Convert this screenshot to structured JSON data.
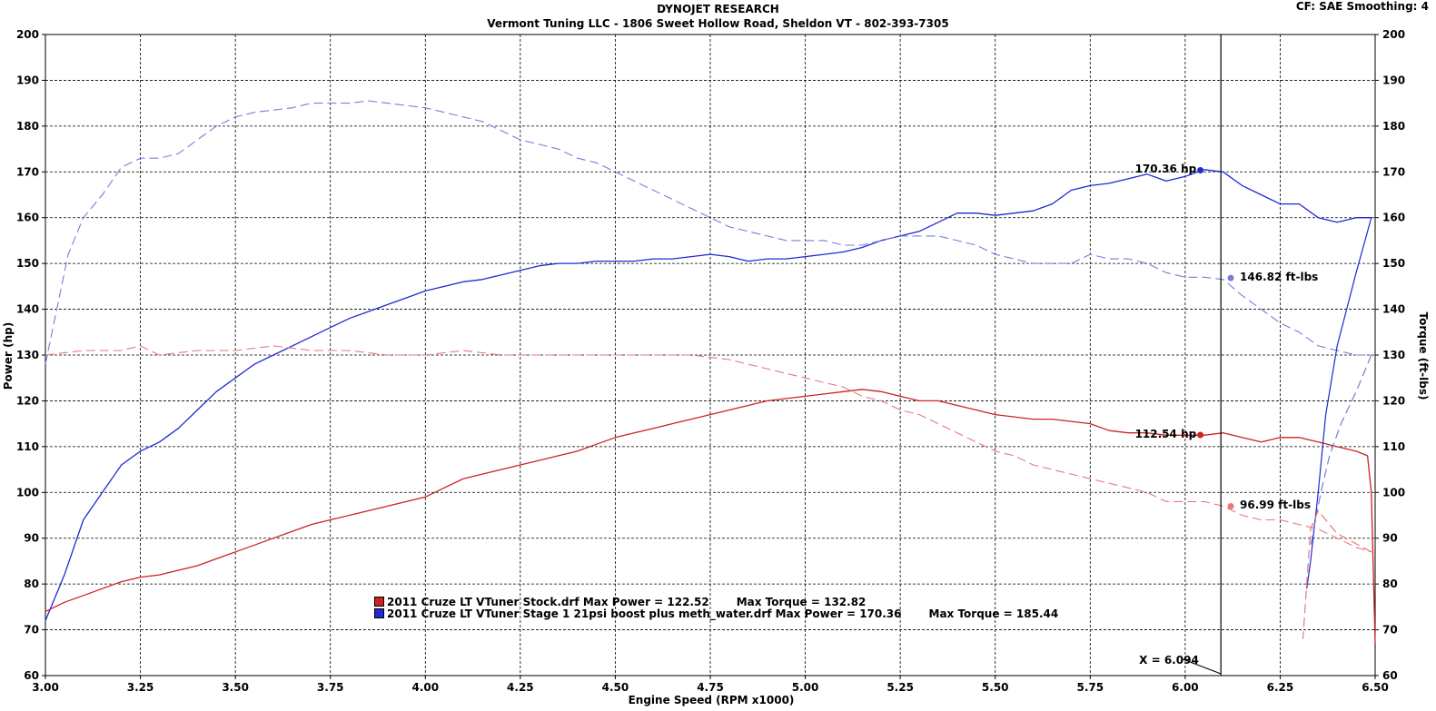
{
  "header": {
    "title": "DYNOJET RESEARCH",
    "subtitle": "Vermont Tuning LLC - 1806 Sweet Hollow Road, Sheldon VT - 802-393-7305",
    "corner": "CF: SAE  Smoothing: 4"
  },
  "legend": [
    {
      "file": "2011 Cruze LT VTuner Stock.drf",
      "power_text": "Max Power = 122.52",
      "torque_text": "Max Torque = 132.82",
      "color": "#cc2222"
    },
    {
      "file": "2011 Cruze LT VTuner Stage 1 21psi boost plus meth_water.drf",
      "power_text": "Max Power = 170.36",
      "torque_text": "Max Torque = 185.44",
      "color": "#1f2ad4"
    }
  ],
  "cursor": {
    "label": "X = 6.094",
    "x": 6.094
  },
  "markers": [
    {
      "label": "170.36 hp",
      "x": 6.04,
      "y": 170.36,
      "color": "#1f2ad4",
      "side": "left"
    },
    {
      "label": "146.82 ft-lbs",
      "x": 6.12,
      "y": 146.82,
      "color": "#7b7bd9",
      "side": "right"
    },
    {
      "label": "112.54 hp",
      "x": 6.04,
      "y": 112.54,
      "color": "#cc2222",
      "side": "left"
    },
    {
      "label": "96.99 ft-lbs",
      "x": 6.12,
      "y": 96.99,
      "color": "#e87878",
      "side": "right"
    }
  ],
  "chart_data": {
    "type": "line",
    "xlabel": "Engine Speed (RPM x1000)",
    "ylabel": "Power (hp)",
    "y2label": "Torque (ft-lbs)",
    "xlim": [
      3.0,
      6.5
    ],
    "ylim": [
      60,
      200
    ],
    "y2lim": [
      60,
      200
    ],
    "xticks": [
      "3.00",
      "3.25",
      "3.50",
      "3.75",
      "4.00",
      "4.25",
      "4.50",
      "4.75",
      "5.00",
      "5.25",
      "5.50",
      "5.75",
      "6.00",
      "6.25",
      "6.50"
    ],
    "yticks": [
      "60",
      "70",
      "80",
      "90",
      "100",
      "110",
      "120",
      "130",
      "140",
      "150",
      "160",
      "170",
      "180",
      "190",
      "200"
    ],
    "grid": true,
    "series": [
      {
        "name": "2011 Cruze LT VTuner Stage 1 21psi boost plus meth_water.drf Power",
        "color": "#1f2ad4",
        "style": "solid",
        "width": 1.3,
        "x": [
          3.0,
          3.05,
          3.1,
          3.15,
          3.2,
          3.25,
          3.3,
          3.35,
          3.4,
          3.45,
          3.5,
          3.55,
          3.6,
          3.65,
          3.7,
          3.75,
          3.8,
          3.85,
          3.9,
          3.95,
          4.0,
          4.05,
          4.1,
          4.15,
          4.2,
          4.25,
          4.3,
          4.35,
          4.4,
          4.45,
          4.5,
          4.55,
          4.6,
          4.65,
          4.7,
          4.75,
          4.8,
          4.85,
          4.9,
          4.95,
          5.0,
          5.05,
          5.1,
          5.15,
          5.2,
          5.25,
          5.3,
          5.35,
          5.4,
          5.45,
          5.5,
          5.55,
          5.6,
          5.65,
          5.7,
          5.75,
          5.8,
          5.85,
          5.9,
          5.95,
          6.0,
          6.05,
          6.1,
          6.15,
          6.2,
          6.25,
          6.3,
          6.35,
          6.4,
          6.45,
          6.49
        ],
        "y": [
          72,
          82,
          94,
          100,
          106,
          109,
          111,
          114,
          118,
          122,
          125,
          128,
          130,
          132,
          134,
          136,
          138,
          139.5,
          141,
          142.5,
          144,
          145,
          146,
          146.5,
          147.5,
          148.5,
          149.5,
          150,
          150,
          150.5,
          150.5,
          150.5,
          151,
          151,
          151.5,
          152,
          151.5,
          150.5,
          151,
          151,
          151.5,
          152,
          152.5,
          153.5,
          155,
          156,
          157,
          159,
          161,
          161,
          160.5,
          161,
          161.5,
          163,
          166,
          167,
          167.5,
          168.5,
          169.5,
          168,
          169,
          170.5,
          170,
          167,
          165,
          163,
          163,
          160,
          159,
          160,
          160
        ]
      },
      {
        "name": "2011 Cruze LT VTuner Stage 1 21psi boost plus meth_water.drf Torque",
        "color": "#7b7bd9",
        "style": "dashed",
        "width": 1.1,
        "x": [
          3.0,
          3.03,
          3.06,
          3.1,
          3.15,
          3.2,
          3.25,
          3.3,
          3.35,
          3.4,
          3.45,
          3.5,
          3.55,
          3.6,
          3.65,
          3.7,
          3.75,
          3.8,
          3.85,
          3.9,
          3.95,
          4.0,
          4.05,
          4.1,
          4.15,
          4.2,
          4.25,
          4.3,
          4.35,
          4.4,
          4.45,
          4.5,
          4.55,
          4.6,
          4.65,
          4.7,
          4.75,
          4.8,
          4.85,
          4.9,
          4.95,
          5.0,
          5.05,
          5.1,
          5.15,
          5.2,
          5.25,
          5.3,
          5.35,
          5.4,
          5.45,
          5.5,
          5.55,
          5.6,
          5.65,
          5.7,
          5.75,
          5.8,
          5.85,
          5.9,
          5.95,
          6.0,
          6.05,
          6.1,
          6.15,
          6.2,
          6.25,
          6.3,
          6.35,
          6.4,
          6.45,
          6.49
        ],
        "y": [
          128,
          140,
          152,
          160,
          165,
          171,
          173,
          173,
          174,
          177,
          180,
          182,
          183,
          183.5,
          184,
          185,
          185,
          185,
          185.5,
          185,
          184.5,
          184,
          183,
          182,
          181,
          179,
          177,
          176,
          175,
          173,
          172,
          170,
          168,
          166,
          164,
          162,
          160,
          158,
          157,
          156,
          155,
          155,
          155,
          154,
          154,
          155,
          156,
          156,
          156,
          155,
          154,
          152,
          151,
          150,
          150,
          150,
          152,
          151,
          151,
          150,
          148,
          147,
          147,
          146.5,
          143,
          140,
          137,
          135,
          132,
          131,
          130,
          130
        ]
      },
      {
        "name": "2011 Cruze LT VTuner Stock.drf Power",
        "color": "#cc2222",
        "style": "solid",
        "width": 1.3,
        "x": [
          3.0,
          3.05,
          3.1,
          3.15,
          3.2,
          3.25,
          3.3,
          3.35,
          3.4,
          3.45,
          3.5,
          3.55,
          3.6,
          3.65,
          3.7,
          3.75,
          3.8,
          3.85,
          3.9,
          3.95,
          4.0,
          4.05,
          4.1,
          4.15,
          4.2,
          4.25,
          4.3,
          4.35,
          4.4,
          4.45,
          4.5,
          4.55,
          4.6,
          4.65,
          4.7,
          4.75,
          4.8,
          4.85,
          4.9,
          4.95,
          5.0,
          5.05,
          5.1,
          5.15,
          5.2,
          5.25,
          5.3,
          5.35,
          5.4,
          5.45,
          5.5,
          5.55,
          5.6,
          5.65,
          5.7,
          5.75,
          5.8,
          5.85,
          5.9,
          5.95,
          6.0,
          6.05,
          6.1,
          6.15,
          6.2,
          6.25,
          6.3,
          6.35,
          6.4,
          6.45,
          6.48,
          6.49,
          6.5
        ],
        "y": [
          74,
          76,
          77.5,
          79,
          80.5,
          81.5,
          82,
          83,
          84,
          85.5,
          87,
          88.5,
          90,
          91.5,
          93,
          94,
          95,
          96,
          97,
          98,
          99,
          101,
          103,
          104,
          105,
          106,
          107,
          108,
          109,
          110.5,
          112,
          113,
          114,
          115,
          116,
          117,
          118,
          119,
          120,
          120.5,
          121,
          121.5,
          122,
          122.5,
          122,
          121,
          120,
          120,
          119,
          118,
          117,
          116.5,
          116,
          116,
          115.5,
          115,
          113.5,
          113,
          113,
          112.5,
          112.5,
          112.5,
          113,
          112,
          111,
          112,
          112,
          111,
          110,
          109,
          108,
          100,
          67
        ]
      },
      {
        "name": "2011 Cruze LT VTuner Stock.drf Torque",
        "color": "#e87878",
        "style": "dashed",
        "width": 1.1,
        "x": [
          3.0,
          3.1,
          3.2,
          3.25,
          3.3,
          3.4,
          3.5,
          3.6,
          3.7,
          3.8,
          3.9,
          4.0,
          4.1,
          4.2,
          4.3,
          4.4,
          4.5,
          4.6,
          4.7,
          4.8,
          4.85,
          4.9,
          4.95,
          5.0,
          5.05,
          5.1,
          5.15,
          5.2,
          5.25,
          5.3,
          5.35,
          5.4,
          5.45,
          5.5,
          5.55,
          5.6,
          5.65,
          5.7,
          5.75,
          5.8,
          5.85,
          5.9,
          5.95,
          6.0,
          6.05,
          6.1,
          6.15,
          6.2,
          6.25,
          6.3,
          6.35,
          6.4,
          6.45,
          6.49
        ],
        "y": [
          130,
          131,
          131,
          132,
          130,
          131,
          131,
          132,
          131,
          131,
          130,
          130,
          131,
          130,
          130,
          130,
          130,
          130,
          130,
          129,
          128,
          127,
          126,
          125,
          124,
          123,
          121,
          120,
          118,
          117,
          115,
          113,
          111,
          109,
          108,
          106,
          105,
          104,
          103,
          102,
          101,
          100,
          98,
          98,
          98,
          97,
          95,
          94,
          94,
          93,
          92,
          90,
          88,
          87
        ]
      }
    ],
    "drops": [
      {
        "color": "#1f2ad4",
        "style": "solid",
        "x": [
          6.49,
          6.45,
          6.4,
          6.37,
          6.35,
          6.33,
          6.32
        ],
        "y": [
          160,
          148,
          132,
          117,
          100,
          85,
          79
        ]
      },
      {
        "color": "#7b7bd9",
        "style": "dashed",
        "x": [
          6.49,
          6.45,
          6.41,
          6.38,
          6.36,
          6.34,
          6.33
        ],
        "y": [
          130,
          122,
          115,
          108,
          101,
          93,
          88
        ]
      },
      {
        "color": "#e87878",
        "style": "dashed",
        "x": [
          6.49,
          6.4,
          6.37,
          6.35,
          6.33,
          6.32,
          6.31
        ],
        "y": [
          87,
          91,
          94,
          96,
          92,
          80,
          68
        ]
      }
    ]
  }
}
